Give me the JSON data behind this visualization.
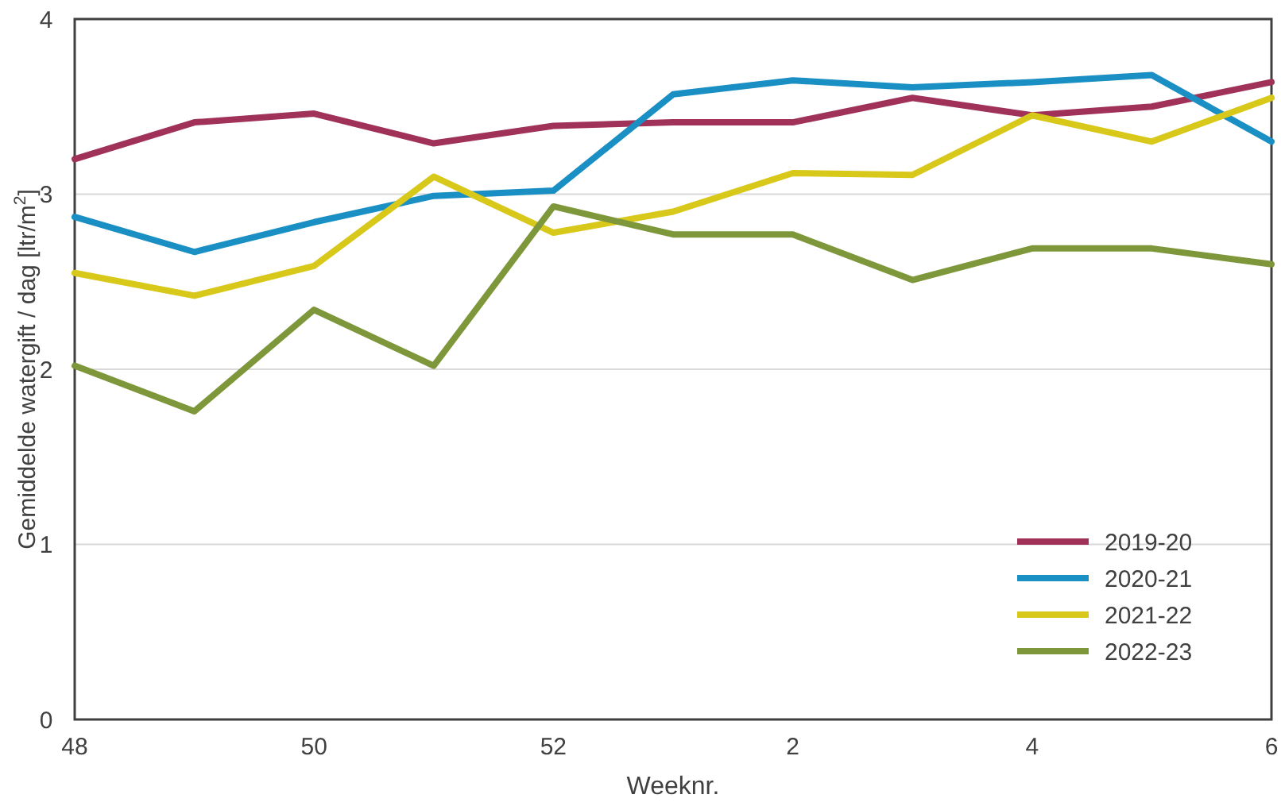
{
  "chart_data": {
    "type": "line",
    "xlabel": "Weeknr.",
    "ylabel": "Gemiddelde watergift / dag [ltr/m$^{2}$]",
    "categories": [
      "48",
      null,
      "50",
      null,
      "52",
      null,
      "2",
      null,
      "4",
      null,
      "6"
    ],
    "series": [
      {
        "name": "2019-20",
        "color": "#a0325a",
        "values": [
          3.2,
          3.41,
          3.46,
          3.29,
          3.39,
          3.41,
          3.41,
          3.55,
          3.45,
          3.5,
          3.64
        ]
      },
      {
        "name": "2020-21",
        "color": "#1a8fc4",
        "values": [
          2.87,
          2.67,
          2.84,
          2.99,
          3.02,
          3.57,
          3.65,
          3.61,
          3.64,
          3.68,
          3.3
        ]
      },
      {
        "name": "2021-22",
        "color": "#d8c81a",
        "values": [
          2.55,
          2.42,
          2.59,
          3.1,
          2.78,
          2.9,
          3.12,
          3.11,
          3.45,
          3.3,
          3.55
        ]
      },
      {
        "name": "2022-23",
        "color": "#7e973a",
        "values": [
          2.02,
          1.76,
          2.34,
          2.02,
          2.93,
          2.77,
          2.77,
          2.51,
          2.69,
          2.69,
          2.6
        ]
      }
    ],
    "ylim": [
      0,
      4
    ],
    "yticks": [
      0,
      1,
      2,
      3,
      4
    ],
    "grid": "y",
    "legend": "bottom right",
    "marker": "none",
    "line_style": "solid"
  }
}
